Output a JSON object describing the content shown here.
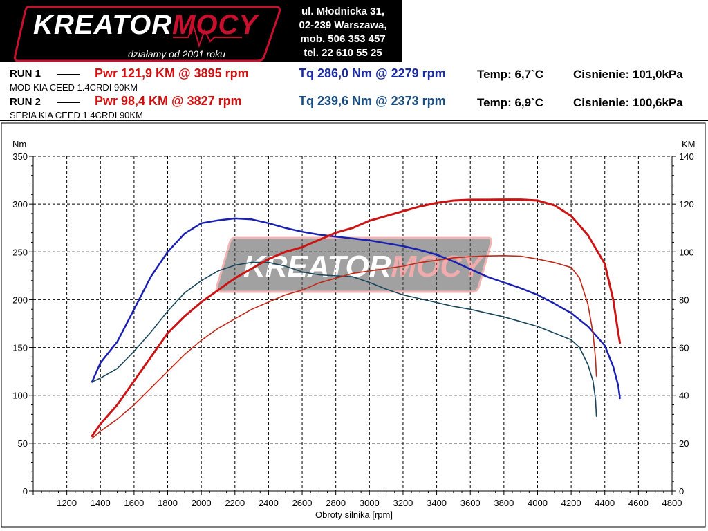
{
  "logo": {
    "brand_main": "KREATOR",
    "brand_accent": "MOCY",
    "tagline": "działamy od 2001 roku"
  },
  "address": {
    "line1": "ul. Młodnicka 31,",
    "line2": "02-239  Warszawa,",
    "line3": "mob.  506 353 457",
    "line4": "tel.  22 610 55 25"
  },
  "runs": [
    {
      "label": "RUN 1",
      "pwr": "Pwr  121,9 KM @ 3895 rpm",
      "tq": "Tq 286,0 Nm @ 2279 rpm",
      "temp": "Temp: 6,7`C",
      "pressure": "Cisnienie: 101,0kPa",
      "description": "MOD KIA CEED 1.4CRDI 90KM"
    },
    {
      "label": "RUN 2",
      "pwr": "Pwr  98,4 KM @ 3827 rpm",
      "tq": "Tq 239,6 Nm @ 2373 rpm",
      "temp": "Temp: 6,9`C",
      "pressure": "Cisnienie: 100,6kPa",
      "description": "SERIA KIA CEED 1.4CRDI 90KM"
    }
  ],
  "colors": {
    "run1_power": "#cc1414",
    "run2_power": "#c02818",
    "run1_torque": "#1a20b0",
    "run2_torque": "#17465c",
    "grid": "#000000",
    "header_bg": "#000000"
  },
  "chart_data": {
    "type": "line",
    "xlabel": "Obroty silnika [rpm]",
    "ylabel_left": "Nm",
    "ylabel_right": "KM",
    "xlim": [
      1000,
      4800
    ],
    "ylim_left": [
      0,
      350
    ],
    "ylim_right": [
      0,
      140
    ],
    "x_ticks": [
      1200,
      1400,
      1600,
      1800,
      2000,
      2200,
      2400,
      2600,
      2800,
      3000,
      3200,
      3400,
      3600,
      3800,
      4000,
      4200,
      4400,
      4600,
      4800
    ],
    "y_ticks_left": [
      0,
      50,
      100,
      150,
      200,
      250,
      300,
      350
    ],
    "y_ticks_right": [
      0,
      20,
      40,
      60,
      80,
      100,
      120,
      140
    ],
    "grid": true,
    "series": [
      {
        "key": "run1_torque",
        "axis": "left",
        "points": [
          [
            1350,
            114
          ],
          [
            1400,
            134
          ],
          [
            1500,
            156
          ],
          [
            1600,
            190
          ],
          [
            1700,
            224
          ],
          [
            1800,
            250
          ],
          [
            1900,
            269
          ],
          [
            2000,
            280
          ],
          [
            2100,
            283
          ],
          [
            2200,
            285
          ],
          [
            2300,
            284
          ],
          [
            2400,
            280
          ],
          [
            2500,
            275
          ],
          [
            2600,
            271
          ],
          [
            2700,
            268
          ],
          [
            2800,
            266
          ],
          [
            2900,
            264
          ],
          [
            3000,
            262
          ],
          [
            3100,
            259
          ],
          [
            3200,
            256
          ],
          [
            3300,
            252
          ],
          [
            3400,
            247
          ],
          [
            3500,
            240
          ],
          [
            3600,
            232
          ],
          [
            3700,
            224
          ],
          [
            3800,
            218
          ],
          [
            3900,
            212
          ],
          [
            4000,
            205
          ],
          [
            4100,
            196
          ],
          [
            4200,
            186
          ],
          [
            4300,
            172
          ],
          [
            4400,
            152
          ],
          [
            4450,
            130
          ],
          [
            4480,
            110
          ],
          [
            4490,
            97
          ]
        ]
      },
      {
        "key": "run2_torque",
        "axis": "left",
        "points": [
          [
            1350,
            114
          ],
          [
            1400,
            118
          ],
          [
            1500,
            128
          ],
          [
            1600,
            146
          ],
          [
            1700,
            166
          ],
          [
            1800,
            188
          ],
          [
            1900,
            207
          ],
          [
            2000,
            220
          ],
          [
            2100,
            230
          ],
          [
            2200,
            236
          ],
          [
            2300,
            239
          ],
          [
            2400,
            239
          ],
          [
            2500,
            235
          ],
          [
            2600,
            229
          ],
          [
            2700,
            226
          ],
          [
            2800,
            225
          ],
          [
            2900,
            224
          ],
          [
            3000,
            218
          ],
          [
            3100,
            211
          ],
          [
            3200,
            205
          ],
          [
            3300,
            201
          ],
          [
            3400,
            197
          ],
          [
            3500,
            193
          ],
          [
            3600,
            190
          ],
          [
            3700,
            186
          ],
          [
            3800,
            182
          ],
          [
            3900,
            177
          ],
          [
            4000,
            172
          ],
          [
            4100,
            165
          ],
          [
            4200,
            158
          ],
          [
            4250,
            150
          ],
          [
            4300,
            132
          ],
          [
            4330,
            115
          ],
          [
            4345,
            95
          ],
          [
            4350,
            78
          ]
        ]
      },
      {
        "key": "run1_power",
        "axis": "right",
        "points": [
          [
            1350,
            23
          ],
          [
            1400,
            28
          ],
          [
            1500,
            36
          ],
          [
            1600,
            46
          ],
          [
            1700,
            56
          ],
          [
            1800,
            66
          ],
          [
            1900,
            73
          ],
          [
            2000,
            79
          ],
          [
            2100,
            84
          ],
          [
            2200,
            89
          ],
          [
            2300,
            93
          ],
          [
            2400,
            97
          ],
          [
            2500,
            100
          ],
          [
            2600,
            102
          ],
          [
            2700,
            105
          ],
          [
            2800,
            108
          ],
          [
            2900,
            110
          ],
          [
            3000,
            113
          ],
          [
            3100,
            115
          ],
          [
            3200,
            117
          ],
          [
            3300,
            119
          ],
          [
            3400,
            120.5
          ],
          [
            3500,
            121.5
          ],
          [
            3600,
            121.8
          ],
          [
            3700,
            121.8
          ],
          [
            3800,
            121.9
          ],
          [
            3900,
            121.9
          ],
          [
            4000,
            121.5
          ],
          [
            4100,
            119.5
          ],
          [
            4200,
            115
          ],
          [
            4300,
            107
          ],
          [
            4400,
            95
          ],
          [
            4450,
            80
          ],
          [
            4480,
            66
          ],
          [
            4490,
            62
          ]
        ]
      },
      {
        "key": "run2_power",
        "axis": "right",
        "points": [
          [
            1350,
            22
          ],
          [
            1400,
            25
          ],
          [
            1500,
            30
          ],
          [
            1600,
            36
          ],
          [
            1700,
            43
          ],
          [
            1800,
            50
          ],
          [
            1900,
            57
          ],
          [
            2000,
            63
          ],
          [
            2100,
            68
          ],
          [
            2200,
            72
          ],
          [
            2300,
            76
          ],
          [
            2400,
            79
          ],
          [
            2500,
            82
          ],
          [
            2600,
            84
          ],
          [
            2700,
            87
          ],
          [
            2800,
            89
          ],
          [
            2900,
            91
          ],
          [
            3000,
            92
          ],
          [
            3100,
            93
          ],
          [
            3200,
            94
          ],
          [
            3300,
            95.5
          ],
          [
            3400,
            96.5
          ],
          [
            3500,
            97.5
          ],
          [
            3600,
            98
          ],
          [
            3700,
            98.3
          ],
          [
            3800,
            98.4
          ],
          [
            3900,
            98.2
          ],
          [
            4000,
            97
          ],
          [
            4100,
            95.5
          ],
          [
            4200,
            93.5
          ],
          [
            4250,
            89
          ],
          [
            4300,
            78
          ],
          [
            4330,
            66
          ],
          [
            4345,
            55
          ],
          [
            4350,
            48
          ]
        ]
      }
    ]
  }
}
